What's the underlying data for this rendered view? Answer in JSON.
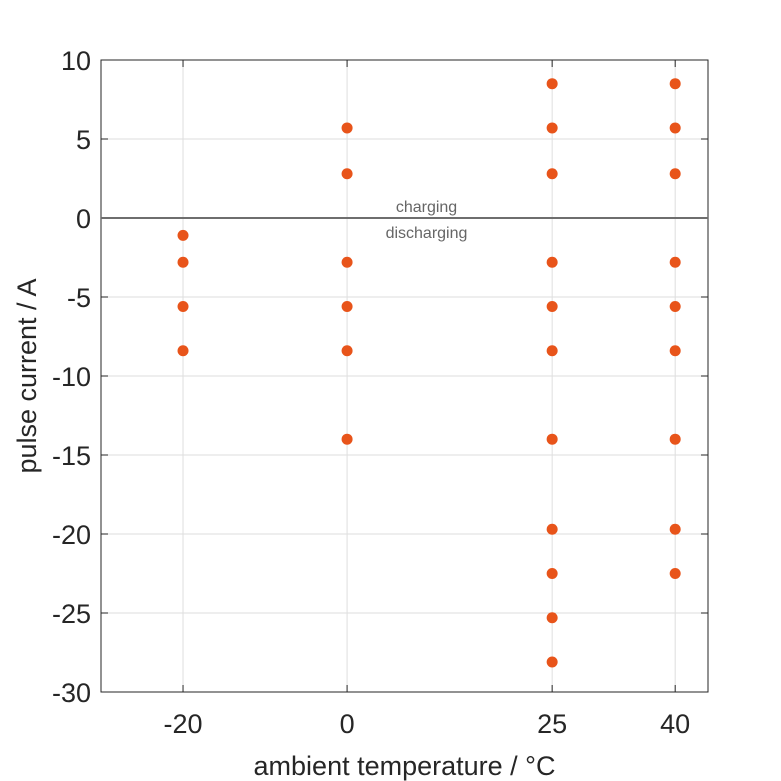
{
  "chart_data": {
    "type": "scatter",
    "title": "",
    "xlabel": "ambient temperature / °C",
    "ylabel": "pulse current / A",
    "xlim": [
      -30,
      44
    ],
    "ylim": [
      -30,
      10
    ],
    "x_ticks": [
      -20,
      0,
      25,
      40
    ],
    "y_ticks": [
      10,
      5,
      0,
      -5,
      -10,
      -15,
      -20,
      -25,
      -30
    ],
    "grid": true,
    "marker_color": "#e8541a",
    "reference_line": {
      "y": 0,
      "color": "#6e6e6e"
    },
    "annotations": {
      "above": "charging",
      "below": "discharging"
    },
    "series": [
      {
        "points": [
          {
            "x": -20,
            "y": -1.1
          },
          {
            "x": -20,
            "y": -2.8
          },
          {
            "x": -20,
            "y": -5.6
          },
          {
            "x": -20,
            "y": -8.4
          },
          {
            "x": 0,
            "y": 5.7
          },
          {
            "x": 0,
            "y": 2.8
          },
          {
            "x": 0,
            "y": -2.8
          },
          {
            "x": 0,
            "y": -5.6
          },
          {
            "x": 0,
            "y": -8.4
          },
          {
            "x": 0,
            "y": -14.0
          },
          {
            "x": 25,
            "y": 8.5
          },
          {
            "x": 25,
            "y": 5.7
          },
          {
            "x": 25,
            "y": 2.8
          },
          {
            "x": 25,
            "y": -2.8
          },
          {
            "x": 25,
            "y": -5.6
          },
          {
            "x": 25,
            "y": -8.4
          },
          {
            "x": 25,
            "y": -14.0
          },
          {
            "x": 25,
            "y": -19.7
          },
          {
            "x": 25,
            "y": -22.5
          },
          {
            "x": 25,
            "y": -25.3
          },
          {
            "x": 25,
            "y": -28.1
          },
          {
            "x": 40,
            "y": 8.5
          },
          {
            "x": 40,
            "y": 5.7
          },
          {
            "x": 40,
            "y": 2.8
          },
          {
            "x": 40,
            "y": -2.8
          },
          {
            "x": 40,
            "y": -5.6
          },
          {
            "x": 40,
            "y": -8.4
          },
          {
            "x": 40,
            "y": -14.0
          },
          {
            "x": 40,
            "y": -19.7
          },
          {
            "x": 40,
            "y": -22.5
          }
        ]
      }
    ]
  }
}
